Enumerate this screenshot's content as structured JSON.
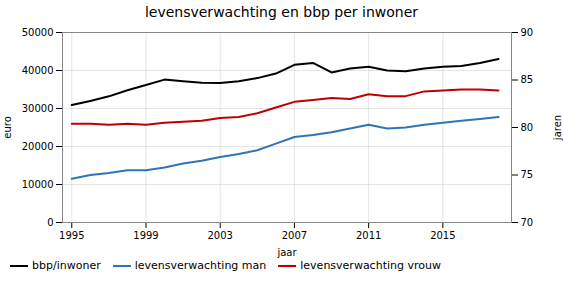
{
  "chart_data": {
    "type": "line",
    "title": "levensverwachting en bbp per inwoner",
    "xlabel": "jaar",
    "ylabel": "euro",
    "y2label": "jaren",
    "x": [
      1995,
      1996,
      1997,
      1998,
      1999,
      2000,
      2001,
      2002,
      2003,
      2004,
      2005,
      2006,
      2007,
      2008,
      2009,
      2010,
      2011,
      2012,
      2013,
      2014,
      2015,
      2016,
      2017,
      2018
    ],
    "series": [
      {
        "name": "bbp/inwoner",
        "color": "#000000",
        "values": [
          30900,
          32000,
          33200,
          34800,
          36200,
          37600,
          37200,
          36800,
          36700,
          37200,
          38000,
          39200,
          41500,
          42000,
          39500,
          40500,
          41000,
          40000,
          39800,
          40500,
          41000,
          41200,
          42000,
          43000
        ]
      },
      {
        "name": "levensverwachting man",
        "color": "#2e75b6",
        "axis": "y2",
        "values": [
          74.6,
          75.0,
          75.2,
          75.5,
          75.5,
          75.8,
          76.2,
          76.5,
          76.9,
          77.2,
          77.6,
          78.3,
          79.0,
          79.2,
          79.5,
          79.9,
          80.3,
          79.9,
          80.0,
          80.3,
          80.5,
          80.7,
          80.9,
          81.1
        ]
      },
      {
        "name": "levensverwachting vrouw",
        "color": "#c00000",
        "axis": "y2",
        "values": [
          80.4,
          80.4,
          80.3,
          80.4,
          80.3,
          80.5,
          80.6,
          80.7,
          81.0,
          81.1,
          81.5,
          82.1,
          82.7,
          82.9,
          83.1,
          83.0,
          83.5,
          83.3,
          83.3,
          83.8,
          83.9,
          84.0,
          84.0,
          83.9
        ]
      }
    ],
    "xlim": [
      1994.5,
      2018.7
    ],
    "xticks": [
      1995,
      1999,
      2003,
      2007,
      2011,
      2015
    ],
    "ylim": [
      0,
      50000
    ],
    "yticks": [
      0,
      10000,
      20000,
      30000,
      40000,
      50000
    ],
    "y2lim": [
      70,
      90
    ],
    "y2ticks": [
      70,
      75,
      80,
      85,
      90
    ],
    "grid": true,
    "legend": "lower left"
  }
}
